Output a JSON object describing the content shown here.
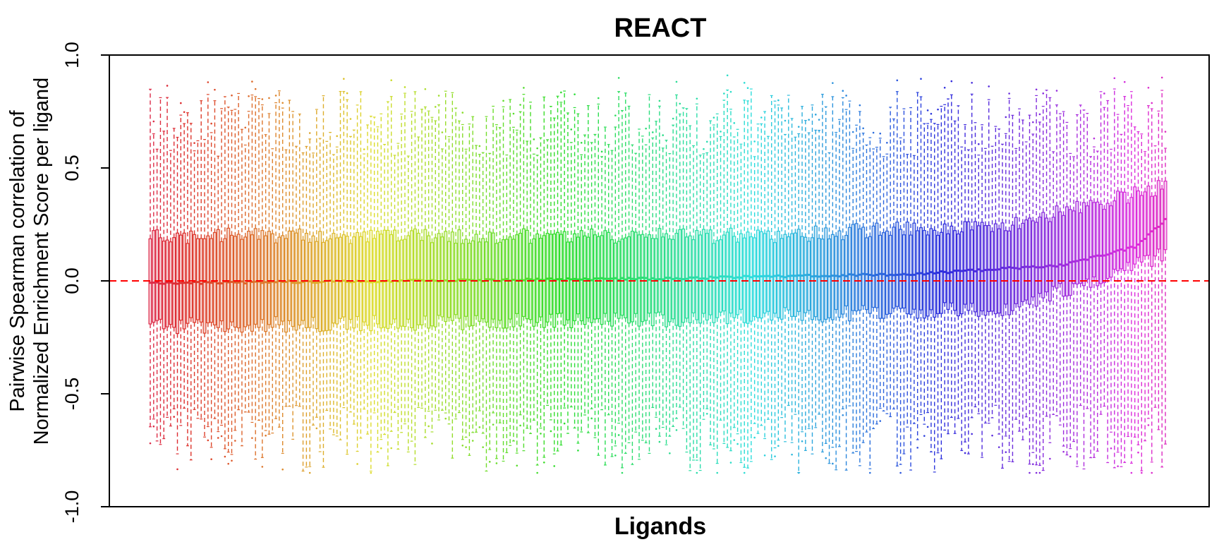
{
  "chart_data": {
    "type": "boxplot",
    "title": "REACT",
    "xlabel": "Ligands",
    "ylabel_lines": [
      "Pairwise Spearman correlation of",
      "Normalized Enrichment Score per ligand"
    ],
    "ylim": [
      -1.0,
      1.0
    ],
    "yticks": [
      -1.0,
      -0.5,
      0.0,
      0.5,
      1.0
    ],
    "ytick_labels": [
      "-1.0",
      "-0.5",
      "0.0",
      "0.5",
      "1.0"
    ],
    "reference_line": {
      "y": 0.0,
      "color": "#ff0000",
      "style": "dashed"
    },
    "palette": "hue-rainbow (red → orange → green → cyan → blue → purple → pink)",
    "n_boxes": 300,
    "sorted_by": "median (ascending)",
    "median_profile": [
      {
        "position": 0.0,
        "median": -0.01
      },
      {
        "position": 0.25,
        "median": 0.0
      },
      {
        "position": 0.5,
        "median": 0.01
      },
      {
        "position": 0.75,
        "median": 0.03
      },
      {
        "position": 0.9,
        "median": 0.07
      },
      {
        "position": 0.97,
        "median": 0.15
      },
      {
        "position": 1.0,
        "median": 0.27
      }
    ],
    "q3_profile": [
      {
        "position": 0.0,
        "q3": 0.2
      },
      {
        "position": 0.3,
        "q3": 0.2
      },
      {
        "position": 0.6,
        "q3": 0.2
      },
      {
        "position": 0.85,
        "q3": 0.25
      },
      {
        "position": 1.0,
        "q3": 0.42
      }
    ],
    "q1_profile": [
      {
        "position": 0.0,
        "q1": -0.2
      },
      {
        "position": 0.5,
        "q1": -0.17
      },
      {
        "position": 0.85,
        "q1": -0.12
      },
      {
        "position": 1.0,
        "q1": 0.12
      }
    ],
    "whisker_upper_range": [
      0.55,
      0.85
    ],
    "whisker_lower_range": [
      -0.85,
      -0.55
    ],
    "outlier_max": 0.91,
    "outlier_min": -0.85
  }
}
